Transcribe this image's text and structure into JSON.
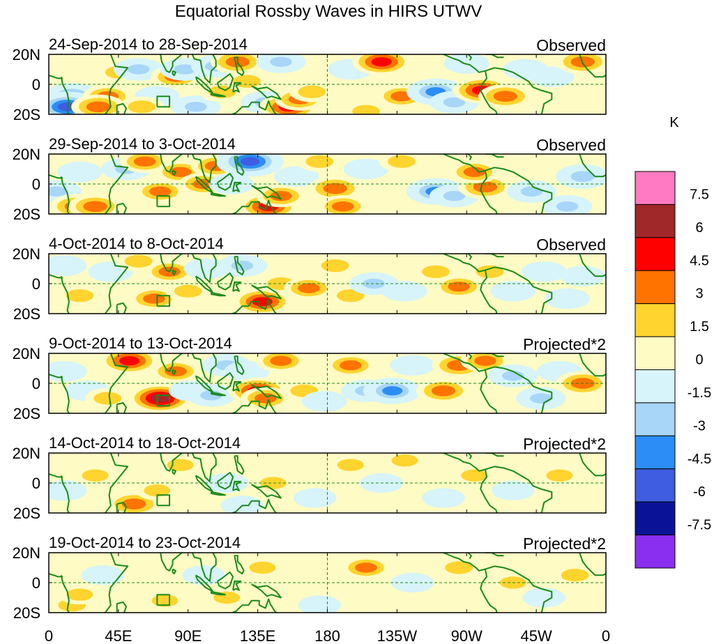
{
  "title": "Equatorial Rossby Waves in HIRS UTWV",
  "panels": [
    {
      "date_range": "24-Sep-2014 to 28-Sep-2014",
      "label": "Observed",
      "blobs": [
        [
          15,
          -8,
          -5
        ],
        [
          12,
          -15,
          -7
        ],
        [
          38,
          -8,
          3
        ],
        [
          32,
          -15,
          4
        ],
        [
          45,
          8,
          1.5
        ],
        [
          58,
          10,
          -3
        ],
        [
          70,
          -8,
          -2
        ],
        [
          60,
          -15,
          2
        ],
        [
          82,
          5,
          3
        ],
        [
          88,
          10,
          -3
        ],
        [
          95,
          -15,
          -3
        ],
        [
          108,
          12,
          -3
        ],
        [
          112,
          -5,
          2
        ],
        [
          122,
          15,
          4
        ],
        [
          128,
          2,
          2
        ],
        [
          140,
          -12,
          -3
        ],
        [
          150,
          15,
          -3
        ],
        [
          155,
          -15,
          5
        ],
        [
          162,
          -10,
          3
        ],
        [
          170,
          -5,
          2
        ],
        [
          195,
          10,
          -2
        ],
        [
          205,
          -18,
          2
        ],
        [
          215,
          15,
          5
        ],
        [
          228,
          -8,
          3
        ],
        [
          250,
          -5,
          -5
        ],
        [
          262,
          -12,
          -3
        ],
        [
          270,
          14,
          -2
        ],
        [
          280,
          -4,
          5
        ],
        [
          295,
          -8,
          4
        ],
        [
          308,
          10,
          -2
        ],
        [
          325,
          5,
          -2
        ],
        [
          345,
          15,
          4
        ]
      ]
    },
    {
      "date_range": "29-Sep-2014 to 3-Oct-2014",
      "label": "Observed",
      "blobs": [
        [
          5,
          -5,
          -3
        ],
        [
          20,
          8,
          -2
        ],
        [
          18,
          -15,
          4
        ],
        [
          30,
          -15,
          4
        ],
        [
          50,
          10,
          -3
        ],
        [
          62,
          15,
          3
        ],
        [
          72,
          -5,
          3
        ],
        [
          85,
          8,
          3
        ],
        [
          100,
          0,
          3
        ],
        [
          108,
          12,
          3
        ],
        [
          118,
          0,
          -2
        ],
        [
          130,
          15,
          -7
        ],
        [
          142,
          -15,
          5
        ],
        [
          150,
          -8,
          3
        ],
        [
          160,
          5,
          -2
        ],
        [
          175,
          15,
          2
        ],
        [
          185,
          -3,
          4
        ],
        [
          190,
          -15,
          3
        ],
        [
          205,
          10,
          -2
        ],
        [
          228,
          15,
          2
        ],
        [
          250,
          -5,
          -5
        ],
        [
          262,
          -8,
          -3
        ],
        [
          282,
          -2,
          4
        ],
        [
          275,
          8,
          3
        ],
        [
          312,
          -5,
          -3
        ],
        [
          335,
          -15,
          -3
        ],
        [
          345,
          5,
          -4
        ]
      ]
    },
    {
      "date_range": "4-Oct-2014 to 8-Oct-2014",
      "label": "Observed",
      "blobs": [
        [
          10,
          12,
          -2
        ],
        [
          20,
          -8,
          2
        ],
        [
          40,
          8,
          -2
        ],
        [
          58,
          15,
          2
        ],
        [
          68,
          -10,
          3
        ],
        [
          78,
          8,
          3
        ],
        [
          90,
          -5,
          2
        ],
        [
          102,
          10,
          -2
        ],
        [
          125,
          12,
          -3
        ],
        [
          138,
          -12,
          5
        ],
        [
          150,
          0,
          2
        ],
        [
          168,
          -3,
          3
        ],
        [
          185,
          12,
          2
        ],
        [
          195,
          -8,
          2
        ],
        [
          210,
          0,
          -3
        ],
        [
          230,
          -5,
          -2
        ],
        [
          250,
          8,
          2
        ],
        [
          265,
          -2,
          3
        ],
        [
          285,
          8,
          2
        ],
        [
          300,
          -5,
          -2
        ],
        [
          320,
          8,
          -2
        ],
        [
          335,
          -10,
          -2
        ],
        [
          345,
          5,
          -2
        ]
      ]
    },
    {
      "date_range": "9-Oct-2014 to 13-Oct-2014",
      "label": "Projected*2",
      "blobs": [
        [
          10,
          8,
          -2
        ],
        [
          25,
          -5,
          -2
        ],
        [
          38,
          -10,
          2
        ],
        [
          52,
          15,
          5
        ],
        [
          72,
          -10,
          6
        ],
        [
          82,
          8,
          3
        ],
        [
          92,
          -5,
          -2
        ],
        [
          105,
          -8,
          -3
        ],
        [
          115,
          12,
          -3
        ],
        [
          128,
          8,
          -2
        ],
        [
          135,
          -5,
          5
        ],
        [
          140,
          -10,
          3
        ],
        [
          150,
          15,
          3
        ],
        [
          165,
          -5,
          2
        ],
        [
          178,
          -12,
          -2
        ],
        [
          195,
          12,
          3
        ],
        [
          205,
          -5,
          -3
        ],
        [
          222,
          -5,
          -5
        ],
        [
          235,
          12,
          -2
        ],
        [
          255,
          -5,
          4
        ],
        [
          265,
          12,
          4
        ],
        [
          282,
          15,
          3
        ],
        [
          300,
          5,
          -3
        ],
        [
          318,
          -10,
          -3
        ],
        [
          330,
          8,
          -2
        ],
        [
          345,
          0,
          4
        ]
      ]
    },
    {
      "date_range": "14-Oct-2014 to 18-Oct-2014",
      "label": "Projected*2",
      "blobs": [
        [
          10,
          -5,
          -2
        ],
        [
          30,
          5,
          1.5
        ],
        [
          55,
          -14,
          4
        ],
        [
          70,
          -5,
          1.5
        ],
        [
          85,
          12,
          1.5
        ],
        [
          115,
          0,
          -1.5
        ],
        [
          125,
          -15,
          -1.5
        ],
        [
          145,
          0,
          1.5
        ],
        [
          172,
          -10,
          -1.5
        ],
        [
          195,
          12,
          1.5
        ],
        [
          215,
          0,
          -1.5
        ],
        [
          230,
          15,
          1.5
        ],
        [
          255,
          -10,
          -1.5
        ],
        [
          275,
          5,
          1.5
        ],
        [
          300,
          -5,
          -1.5
        ],
        [
          330,
          5,
          1.5
        ]
      ]
    },
    {
      "date_range": "19-Oct-2014 to 23-Oct-2014",
      "label": "Projected*2",
      "blobs": [
        [
          15,
          -15,
          2
        ],
        [
          20,
          -8,
          1.5
        ],
        [
          35,
          5,
          -1.5
        ],
        [
          75,
          -12,
          1.5
        ],
        [
          100,
          5,
          -1.5
        ],
        [
          115,
          -10,
          1.5
        ],
        [
          138,
          10,
          1.5
        ],
        [
          175,
          -15,
          -1.5
        ],
        [
          205,
          10,
          3
        ],
        [
          235,
          0,
          -1.5
        ],
        [
          265,
          10,
          2
        ],
        [
          300,
          0,
          1.5
        ],
        [
          320,
          -10,
          -1.5
        ],
        [
          340,
          5,
          2
        ]
      ]
    }
  ],
  "y_tick_labels": [
    "20N",
    "0",
    "20S"
  ],
  "x_tick_labels": [
    "0",
    "45E",
    "90E",
    "135E",
    "180",
    "135W",
    "90W",
    "45W",
    "0"
  ],
  "colorbar": {
    "unit": "K",
    "labels": [
      "7.5",
      "6",
      "4.5",
      "3",
      "1.5",
      "0",
      "-1.5",
      "-3",
      "-4.5",
      "-6",
      "-7.5"
    ],
    "colors": [
      "#ff7ac0",
      "#a02828",
      "#ff0000",
      "#ff7300",
      "#ffd42e",
      "#fffbc4",
      "#d6f4fa",
      "#a8d6f8",
      "#2b8df5",
      "#3e5de0",
      "#0a1396",
      "#8a2ef0"
    ]
  },
  "colors": {
    "coast": "#1a8a1a",
    "guide": "#1a8a1a",
    "frame": "#000000"
  }
}
